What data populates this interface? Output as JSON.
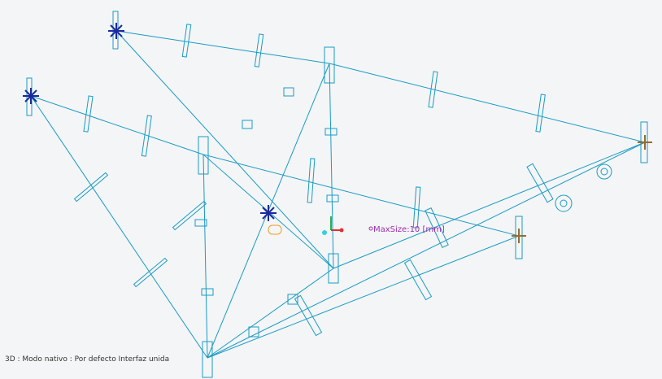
{
  "viewport": {
    "status": "3D : Modo nativo : Por defecto Interfaz unida"
  },
  "annotation": {
    "label": "MaxSize:10 [mm]"
  }
}
